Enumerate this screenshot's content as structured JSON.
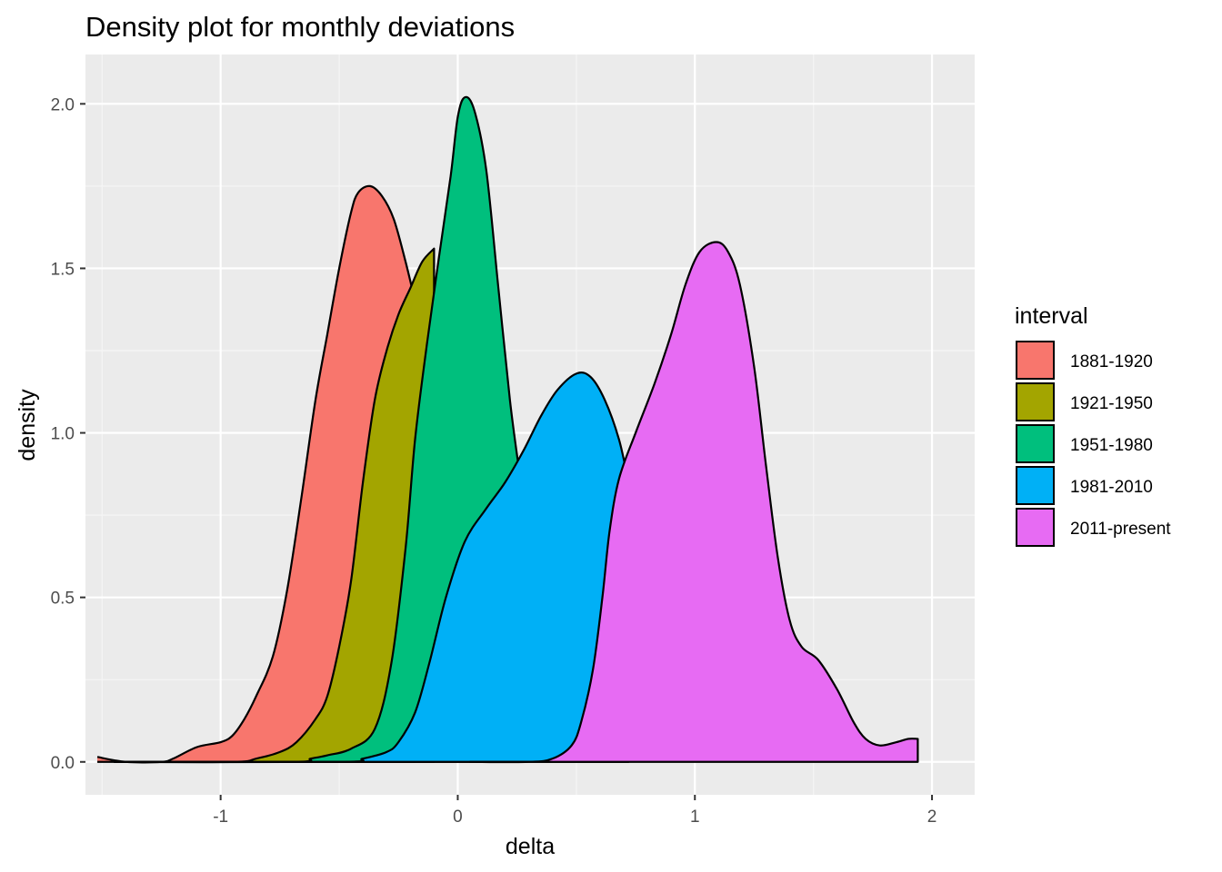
{
  "chart_data": {
    "type": "area",
    "title": "Density plot for monthly deviations",
    "xlabel": "delta",
    "ylabel": "density",
    "xlim": [
      -1.57,
      2.18
    ],
    "ylim": [
      -0.1,
      2.15
    ],
    "x_ticks": [
      -1,
      0,
      1,
      2
    ],
    "x_tick_labels": [
      "-1",
      "0",
      "1",
      "2"
    ],
    "y_ticks": [
      0.0,
      0.5,
      1.0,
      1.5,
      2.0
    ],
    "y_tick_labels": [
      "0.0",
      "0.5",
      "1.0",
      "1.5",
      "2.0"
    ],
    "grid": true,
    "legend": {
      "title": "interval",
      "position": "right"
    },
    "series": [
      {
        "name": "1881-1920",
        "color": "#F8766D",
        "points": [
          [
            -1.52,
            0.015
          ],
          [
            -1.4,
            0.0
          ],
          [
            -1.25,
            0.0
          ],
          [
            -1.2,
            0.01
          ],
          [
            -1.1,
            0.045
          ],
          [
            -1.0,
            0.06
          ],
          [
            -0.95,
            0.08
          ],
          [
            -0.9,
            0.13
          ],
          [
            -0.85,
            0.2
          ],
          [
            -0.78,
            0.32
          ],
          [
            -0.72,
            0.52
          ],
          [
            -0.66,
            0.8
          ],
          [
            -0.6,
            1.1
          ],
          [
            -0.55,
            1.3
          ],
          [
            -0.5,
            1.5
          ],
          [
            -0.45,
            1.67
          ],
          [
            -0.42,
            1.73
          ],
          [
            -0.37,
            1.75
          ],
          [
            -0.32,
            1.72
          ],
          [
            -0.27,
            1.65
          ],
          [
            -0.22,
            1.52
          ],
          [
            -0.18,
            1.4
          ]
        ]
      },
      {
        "name": "1921-1950",
        "color": "#A3A500",
        "points": [
          [
            -1.45,
            0.0
          ],
          [
            -0.95,
            0.0
          ],
          [
            -0.85,
            0.01
          ],
          [
            -0.75,
            0.03
          ],
          [
            -0.68,
            0.06
          ],
          [
            -0.6,
            0.13
          ],
          [
            -0.55,
            0.2
          ],
          [
            -0.5,
            0.35
          ],
          [
            -0.45,
            0.55
          ],
          [
            -0.4,
            0.85
          ],
          [
            -0.35,
            1.1
          ],
          [
            -0.3,
            1.25
          ],
          [
            -0.25,
            1.36
          ],
          [
            -0.2,
            1.44
          ],
          [
            -0.15,
            1.52
          ],
          [
            -0.1,
            1.56
          ]
        ]
      },
      {
        "name": "1951-1980",
        "color": "#00BF7D",
        "points": [
          [
            -1.45,
            0.0
          ],
          [
            -0.7,
            0.0
          ],
          [
            -0.62,
            0.01
          ],
          [
            -0.55,
            0.02
          ],
          [
            -0.45,
            0.04
          ],
          [
            -0.35,
            0.1
          ],
          [
            -0.28,
            0.3
          ],
          [
            -0.22,
            0.65
          ],
          [
            -0.18,
            0.98
          ],
          [
            -0.13,
            1.27
          ],
          [
            -0.08,
            1.53
          ],
          [
            -0.03,
            1.78
          ],
          [
            0.0,
            1.96
          ],
          [
            0.03,
            2.02
          ],
          [
            0.07,
            1.98
          ],
          [
            0.12,
            1.8
          ],
          [
            0.17,
            1.45
          ],
          [
            0.22,
            1.1
          ],
          [
            0.26,
            0.88
          ]
        ]
      },
      {
        "name": "1981-2010",
        "color": "#00B0F6",
        "points": [
          [
            -1.45,
            0.0
          ],
          [
            -0.5,
            0.0
          ],
          [
            -0.4,
            0.01
          ],
          [
            -0.3,
            0.03
          ],
          [
            -0.25,
            0.06
          ],
          [
            -0.18,
            0.15
          ],
          [
            -0.12,
            0.3
          ],
          [
            -0.05,
            0.5
          ],
          [
            0.03,
            0.67
          ],
          [
            0.12,
            0.77
          ],
          [
            0.2,
            0.85
          ],
          [
            0.28,
            0.95
          ],
          [
            0.35,
            1.05
          ],
          [
            0.42,
            1.13
          ],
          [
            0.5,
            1.18
          ],
          [
            0.56,
            1.17
          ],
          [
            0.62,
            1.1
          ],
          [
            0.68,
            0.98
          ],
          [
            0.72,
            0.85
          ]
        ]
      },
      {
        "name": "2011-present",
        "color": "#E76BF3",
        "points": [
          [
            0.05,
            0.0
          ],
          [
            0.3,
            0.0
          ],
          [
            0.4,
            0.01
          ],
          [
            0.48,
            0.05
          ],
          [
            0.52,
            0.12
          ],
          [
            0.57,
            0.28
          ],
          [
            0.61,
            0.5
          ],
          [
            0.64,
            0.7
          ],
          [
            0.68,
            0.86
          ],
          [
            0.75,
            1.0
          ],
          [
            0.83,
            1.15
          ],
          [
            0.9,
            1.3
          ],
          [
            0.96,
            1.45
          ],
          [
            1.02,
            1.55
          ],
          [
            1.09,
            1.58
          ],
          [
            1.14,
            1.55
          ],
          [
            1.19,
            1.45
          ],
          [
            1.25,
            1.2
          ],
          [
            1.3,
            0.9
          ],
          [
            1.35,
            0.62
          ],
          [
            1.4,
            0.43
          ],
          [
            1.45,
            0.35
          ],
          [
            1.52,
            0.31
          ],
          [
            1.6,
            0.22
          ],
          [
            1.67,
            0.12
          ],
          [
            1.72,
            0.07
          ],
          [
            1.78,
            0.05
          ],
          [
            1.85,
            0.06
          ],
          [
            1.9,
            0.07
          ],
          [
            1.94,
            0.07
          ]
        ]
      }
    ]
  }
}
